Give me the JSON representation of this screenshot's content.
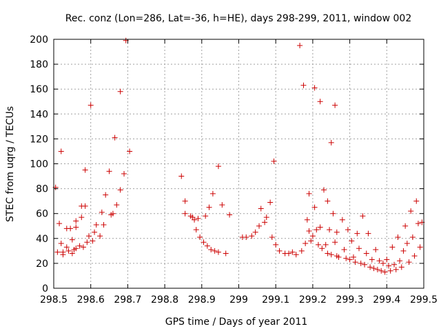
{
  "chart_data": {
    "type": "scatter",
    "title": "Rec. conz (Lon=286, Lat=-36, h=HE), days 298-299, 2011, window 002",
    "xlabel": "GPS time / Days of year 2011",
    "ylabel": "STEC from uqrg / TECUs",
    "xlim": [
      298.5,
      299.5
    ],
    "ylim": [
      0,
      200
    ],
    "xticks": [
      "298.5",
      "298.6",
      "298.7",
      "298.8",
      "298.9",
      "299",
      "299.1",
      "299.2",
      "299.3",
      "299.4",
      "299.5"
    ],
    "yticks": [
      "0",
      "20",
      "40",
      "60",
      "80",
      "100",
      "120",
      "140",
      "160",
      "180",
      "200"
    ],
    "grid": true,
    "marker": "+",
    "color": "#cc0000",
    "points": [
      [
        298.505,
        81
      ],
      [
        298.51,
        29
      ],
      [
        298.515,
        52
      ],
      [
        298.52,
        110
      ],
      [
        298.52,
        36
      ],
      [
        298.525,
        29
      ],
      [
        298.525,
        27
      ],
      [
        298.535,
        33
      ],
      [
        298.535,
        48
      ],
      [
        298.54,
        30
      ],
      [
        298.545,
        48
      ],
      [
        298.55,
        39
      ],
      [
        298.55,
        28
      ],
      [
        298.555,
        31
      ],
      [
        298.56,
        32
      ],
      [
        298.56,
        49
      ],
      [
        298.56,
        54
      ],
      [
        298.57,
        34
      ],
      [
        298.575,
        66
      ],
      [
        298.575,
        57
      ],
      [
        298.58,
        33
      ],
      [
        298.585,
        66
      ],
      [
        298.585,
        95
      ],
      [
        298.59,
        37
      ],
      [
        298.595,
        42
      ],
      [
        298.6,
        147
      ],
      [
        298.605,
        38
      ],
      [
        298.61,
        45
      ],
      [
        298.615,
        51
      ],
      [
        298.625,
        42
      ],
      [
        298.63,
        61
      ],
      [
        298.635,
        51
      ],
      [
        298.64,
        75
      ],
      [
        298.65,
        94
      ],
      [
        298.655,
        59
      ],
      [
        298.66,
        60
      ],
      [
        298.665,
        121
      ],
      [
        298.67,
        67
      ],
      [
        298.68,
        158
      ],
      [
        298.68,
        79
      ],
      [
        298.69,
        92
      ],
      [
        298.695,
        199
      ],
      [
        298.705,
        110
      ],
      [
        298.845,
        90
      ],
      [
        298.855,
        70
      ],
      [
        298.855,
        60
      ],
      [
        298.87,
        58
      ],
      [
        298.875,
        57
      ],
      [
        298.88,
        55
      ],
      [
        298.885,
        47
      ],
      [
        298.89,
        56
      ],
      [
        298.895,
        41
      ],
      [
        298.905,
        37
      ],
      [
        298.91,
        58
      ],
      [
        298.915,
        34
      ],
      [
        298.92,
        65
      ],
      [
        298.925,
        31
      ],
      [
        298.93,
        76
      ],
      [
        298.935,
        30
      ],
      [
        298.945,
        98
      ],
      [
        298.945,
        29
      ],
      [
        298.955,
        67
      ],
      [
        298.965,
        28
      ],
      [
        298.975,
        59
      ],
      [
        299.01,
        41
      ],
      [
        299.02,
        41
      ],
      [
        299.035,
        42
      ],
      [
        299.045,
        45
      ],
      [
        299.055,
        50
      ],
      [
        299.06,
        64
      ],
      [
        299.07,
        53
      ],
      [
        299.075,
        57
      ],
      [
        299.085,
        69
      ],
      [
        299.09,
        41
      ],
      [
        299.095,
        102
      ],
      [
        299.1,
        35
      ],
      [
        299.11,
        30
      ],
      [
        299.125,
        28
      ],
      [
        299.135,
        28
      ],
      [
        299.145,
        29
      ],
      [
        299.155,
        27
      ],
      [
        299.165,
        195
      ],
      [
        299.17,
        30
      ],
      [
        299.175,
        163
      ],
      [
        299.18,
        36
      ],
      [
        299.185,
        55
      ],
      [
        299.19,
        76
      ],
      [
        299.19,
        46
      ],
      [
        299.195,
        38
      ],
      [
        299.2,
        42
      ],
      [
        299.205,
        161
      ],
      [
        299.205,
        65
      ],
      [
        299.21,
        47
      ],
      [
        299.215,
        35
      ],
      [
        299.22,
        150
      ],
      [
        299.22,
        49
      ],
      [
        299.225,
        32
      ],
      [
        299.23,
        79
      ],
      [
        299.235,
        35
      ],
      [
        299.24,
        70
      ],
      [
        299.24,
        28
      ],
      [
        299.245,
        47
      ],
      [
        299.25,
        117
      ],
      [
        299.25,
        27
      ],
      [
        299.255,
        60
      ],
      [
        299.26,
        147
      ],
      [
        299.26,
        37
      ],
      [
        299.265,
        45
      ],
      [
        299.265,
        26
      ],
      [
        299.27,
        25
      ],
      [
        299.28,
        55
      ],
      [
        299.285,
        31
      ],
      [
        299.29,
        24
      ],
      [
        299.295,
        47
      ],
      [
        299.3,
        23
      ],
      [
        299.305,
        38
      ],
      [
        299.31,
        25
      ],
      [
        299.315,
        21
      ],
      [
        299.32,
        44
      ],
      [
        299.325,
        32
      ],
      [
        299.33,
        20
      ],
      [
        299.335,
        58
      ],
      [
        299.34,
        19
      ],
      [
        299.345,
        28
      ],
      [
        299.35,
        44
      ],
      [
        299.355,
        17
      ],
      [
        299.36,
        23
      ],
      [
        299.365,
        16
      ],
      [
        299.37,
        31
      ],
      [
        299.375,
        15
      ],
      [
        299.38,
        22
      ],
      [
        299.385,
        14
      ],
      [
        299.39,
        20
      ],
      [
        299.395,
        13
      ],
      [
        299.4,
        23
      ],
      [
        299.405,
        18
      ],
      [
        299.41,
        14
      ],
      [
        299.415,
        33
      ],
      [
        299.42,
        19
      ],
      [
        299.425,
        15
      ],
      [
        299.43,
        41
      ],
      [
        299.435,
        22
      ],
      [
        299.44,
        17
      ],
      [
        299.445,
        30
      ],
      [
        299.45,
        50
      ],
      [
        299.455,
        36
      ],
      [
        299.46,
        21
      ],
      [
        299.465,
        62
      ],
      [
        299.47,
        41
      ],
      [
        299.475,
        26
      ],
      [
        299.48,
        70
      ],
      [
        299.485,
        52
      ],
      [
        299.49,
        33
      ],
      [
        299.495,
        53
      ]
    ]
  }
}
